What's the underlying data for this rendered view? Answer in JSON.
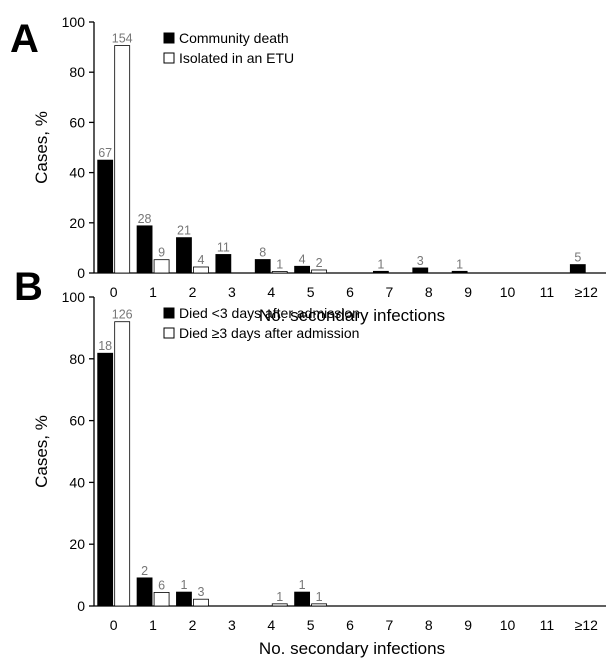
{
  "chart_data": [
    {
      "type": "bar",
      "panel_label": "A",
      "categories": [
        "0",
        "1",
        "2",
        "3",
        "4",
        "5",
        "6",
        "7",
        "8",
        "9",
        "10",
        "11",
        "≥12"
      ],
      "ylabel": "Cases, %",
      "xlabel": "No. secondary infections",
      "ylim": [
        0,
        100
      ],
      "yticks": [
        0,
        20,
        40,
        60,
        80,
        100
      ],
      "legend_position": "top-left",
      "series": [
        {
          "name": "Community death",
          "color": "#000000",
          "values": [
            44.97,
            18.79,
            14.09,
            7.38,
            5.37,
            2.68,
            0,
            0.67,
            2.01,
            0.67,
            0,
            0,
            3.36
          ],
          "counts": [
            "67",
            "28",
            "21",
            "11",
            "8",
            "4",
            "",
            "1",
            "3",
            "1",
            "",
            "",
            "5"
          ]
        },
        {
          "name": "Isolated in an ETU",
          "color": "#ffffff",
          "values": [
            90.6,
            5.3,
            2.4,
            0,
            0.6,
            1.2,
            0,
            0,
            0,
            0,
            0,
            0,
            0
          ],
          "counts": [
            "154",
            "9",
            "4",
            "",
            "1",
            "2",
            "",
            "",
            "",
            "",
            "",
            "",
            ""
          ]
        }
      ]
    },
    {
      "type": "bar",
      "panel_label": "B",
      "categories": [
        "0",
        "1",
        "2",
        "3",
        "4",
        "5",
        "6",
        "7",
        "8",
        "9",
        "10",
        "11",
        "≥12"
      ],
      "ylabel": "Cases, %",
      "xlabel": "No. secondary infections",
      "ylim": [
        0,
        100
      ],
      "yticks": [
        0,
        20,
        40,
        60,
        80,
        100
      ],
      "legend_position": "top-left",
      "series": [
        {
          "name": "Died <3 days after admission",
          "color": "#000000",
          "values": [
            81.8,
            9.1,
            4.5,
            0,
            0,
            4.5,
            0,
            0,
            0,
            0,
            0,
            0,
            0
          ],
          "counts": [
            "18",
            "2",
            "1",
            "",
            "",
            "1",
            "",
            "",
            "",
            "",
            "",
            "",
            ""
          ]
        },
        {
          "name": "Died ≥3 days after admission",
          "color": "#ffffff",
          "values": [
            92.0,
            4.4,
            2.2,
            0,
            0.7,
            0.7,
            0,
            0,
            0,
            0,
            0,
            0,
            0
          ],
          "counts": [
            "126",
            "6",
            "3",
            "",
            "1",
            "1",
            "",
            "",
            "",
            "",
            "",
            "",
            ""
          ]
        }
      ]
    }
  ]
}
